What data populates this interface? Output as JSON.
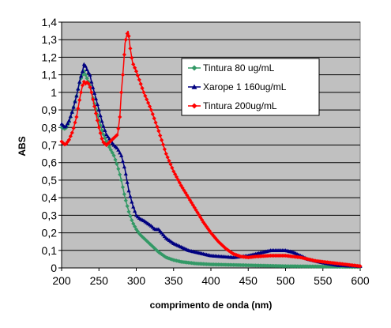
{
  "chart_data": {
    "type": "line",
    "title": "",
    "xlabel": "comprimento de onda (nm)",
    "ylabel": "ABS",
    "xlim": [
      200,
      600
    ],
    "ylim": [
      0,
      1.4
    ],
    "x_ticks": [
      "200",
      "250",
      "300",
      "350",
      "400",
      "450",
      "500",
      "550",
      "600"
    ],
    "y_ticks": [
      "0",
      "0,1",
      "0,2",
      "0,3",
      "0,4",
      "0,5",
      "0,6",
      "0,7",
      "0,8",
      "0,9",
      "1",
      "1,1",
      "1,2",
      "1,3",
      "1,4"
    ],
    "grid": "horizontal",
    "plot_background": "#c0c0c0",
    "legend_position": "top-right",
    "series": [
      {
        "name": "Tintura 80 ug/mL",
        "color": "#339966",
        "marker": "diamond",
        "x": [
          200,
          205,
          210,
          215,
          220,
          225,
          228,
          230,
          232,
          235,
          238,
          240,
          245,
          250,
          255,
          260,
          265,
          270,
          275,
          280,
          285,
          290,
          295,
          300,
          305,
          310,
          320,
          330,
          340,
          350,
          360,
          380,
          400,
          450,
          500,
          550,
          600
        ],
        "y": [
          0.8,
          0.79,
          0.83,
          0.9,
          0.98,
          1.07,
          1.1,
          1.12,
          1.1,
          1.07,
          1.04,
          1.0,
          0.92,
          0.84,
          0.77,
          0.72,
          0.68,
          0.64,
          0.58,
          0.5,
          0.4,
          0.32,
          0.26,
          0.22,
          0.19,
          0.17,
          0.13,
          0.09,
          0.06,
          0.045,
          0.035,
          0.025,
          0.02,
          0.015,
          0.01,
          0.008,
          0.005
        ]
      },
      {
        "name": "Xarope 1 160ug/mL",
        "color": "#000080",
        "marker": "triangle",
        "x": [
          200,
          205,
          210,
          215,
          220,
          225,
          228,
          230,
          232,
          235,
          238,
          240,
          245,
          250,
          255,
          260,
          265,
          270,
          275,
          280,
          285,
          290,
          295,
          300,
          305,
          310,
          320,
          325,
          330,
          340,
          350,
          370,
          400,
          430,
          450,
          470,
          480,
          490,
          500,
          510,
          530,
          550,
          570,
          600
        ],
        "y": [
          0.82,
          0.8,
          0.84,
          0.9,
          0.98,
          1.08,
          1.12,
          1.16,
          1.15,
          1.12,
          1.1,
          1.06,
          0.98,
          0.9,
          0.82,
          0.76,
          0.73,
          0.7,
          0.68,
          0.64,
          0.56,
          0.44,
          0.36,
          0.3,
          0.28,
          0.27,
          0.24,
          0.22,
          0.22,
          0.17,
          0.14,
          0.1,
          0.07,
          0.06,
          0.07,
          0.09,
          0.1,
          0.1,
          0.1,
          0.09,
          0.05,
          0.03,
          0.015,
          0.01
        ]
      },
      {
        "name": "Tintura 200ug/mL",
        "color": "#ff0000",
        "marker": "diamond",
        "x": [
          200,
          205,
          210,
          215,
          220,
          225,
          228,
          230,
          232,
          235,
          238,
          240,
          245,
          250,
          255,
          260,
          265,
          270,
          275,
          278,
          280,
          283,
          285,
          287,
          289,
          290,
          292,
          295,
          300,
          305,
          310,
          320,
          330,
          340,
          350,
          360,
          370,
          380,
          390,
          400,
          410,
          420,
          430,
          440,
          450,
          460,
          480,
          500,
          520,
          540,
          560,
          580,
          600
        ],
        "y": [
          0.72,
          0.7,
          0.73,
          0.78,
          0.86,
          0.98,
          1.04,
          1.06,
          1.05,
          1.06,
          1.03,
          1.0,
          0.9,
          0.8,
          0.72,
          0.7,
          0.72,
          0.74,
          0.76,
          0.86,
          1.0,
          1.15,
          1.28,
          1.32,
          1.35,
          1.32,
          1.25,
          1.17,
          1.12,
          1.06,
          1.0,
          0.9,
          0.78,
          0.65,
          0.55,
          0.47,
          0.4,
          0.33,
          0.26,
          0.2,
          0.15,
          0.11,
          0.08,
          0.065,
          0.06,
          0.065,
          0.07,
          0.07,
          0.06,
          0.04,
          0.03,
          0.02,
          0.01
        ]
      }
    ]
  }
}
